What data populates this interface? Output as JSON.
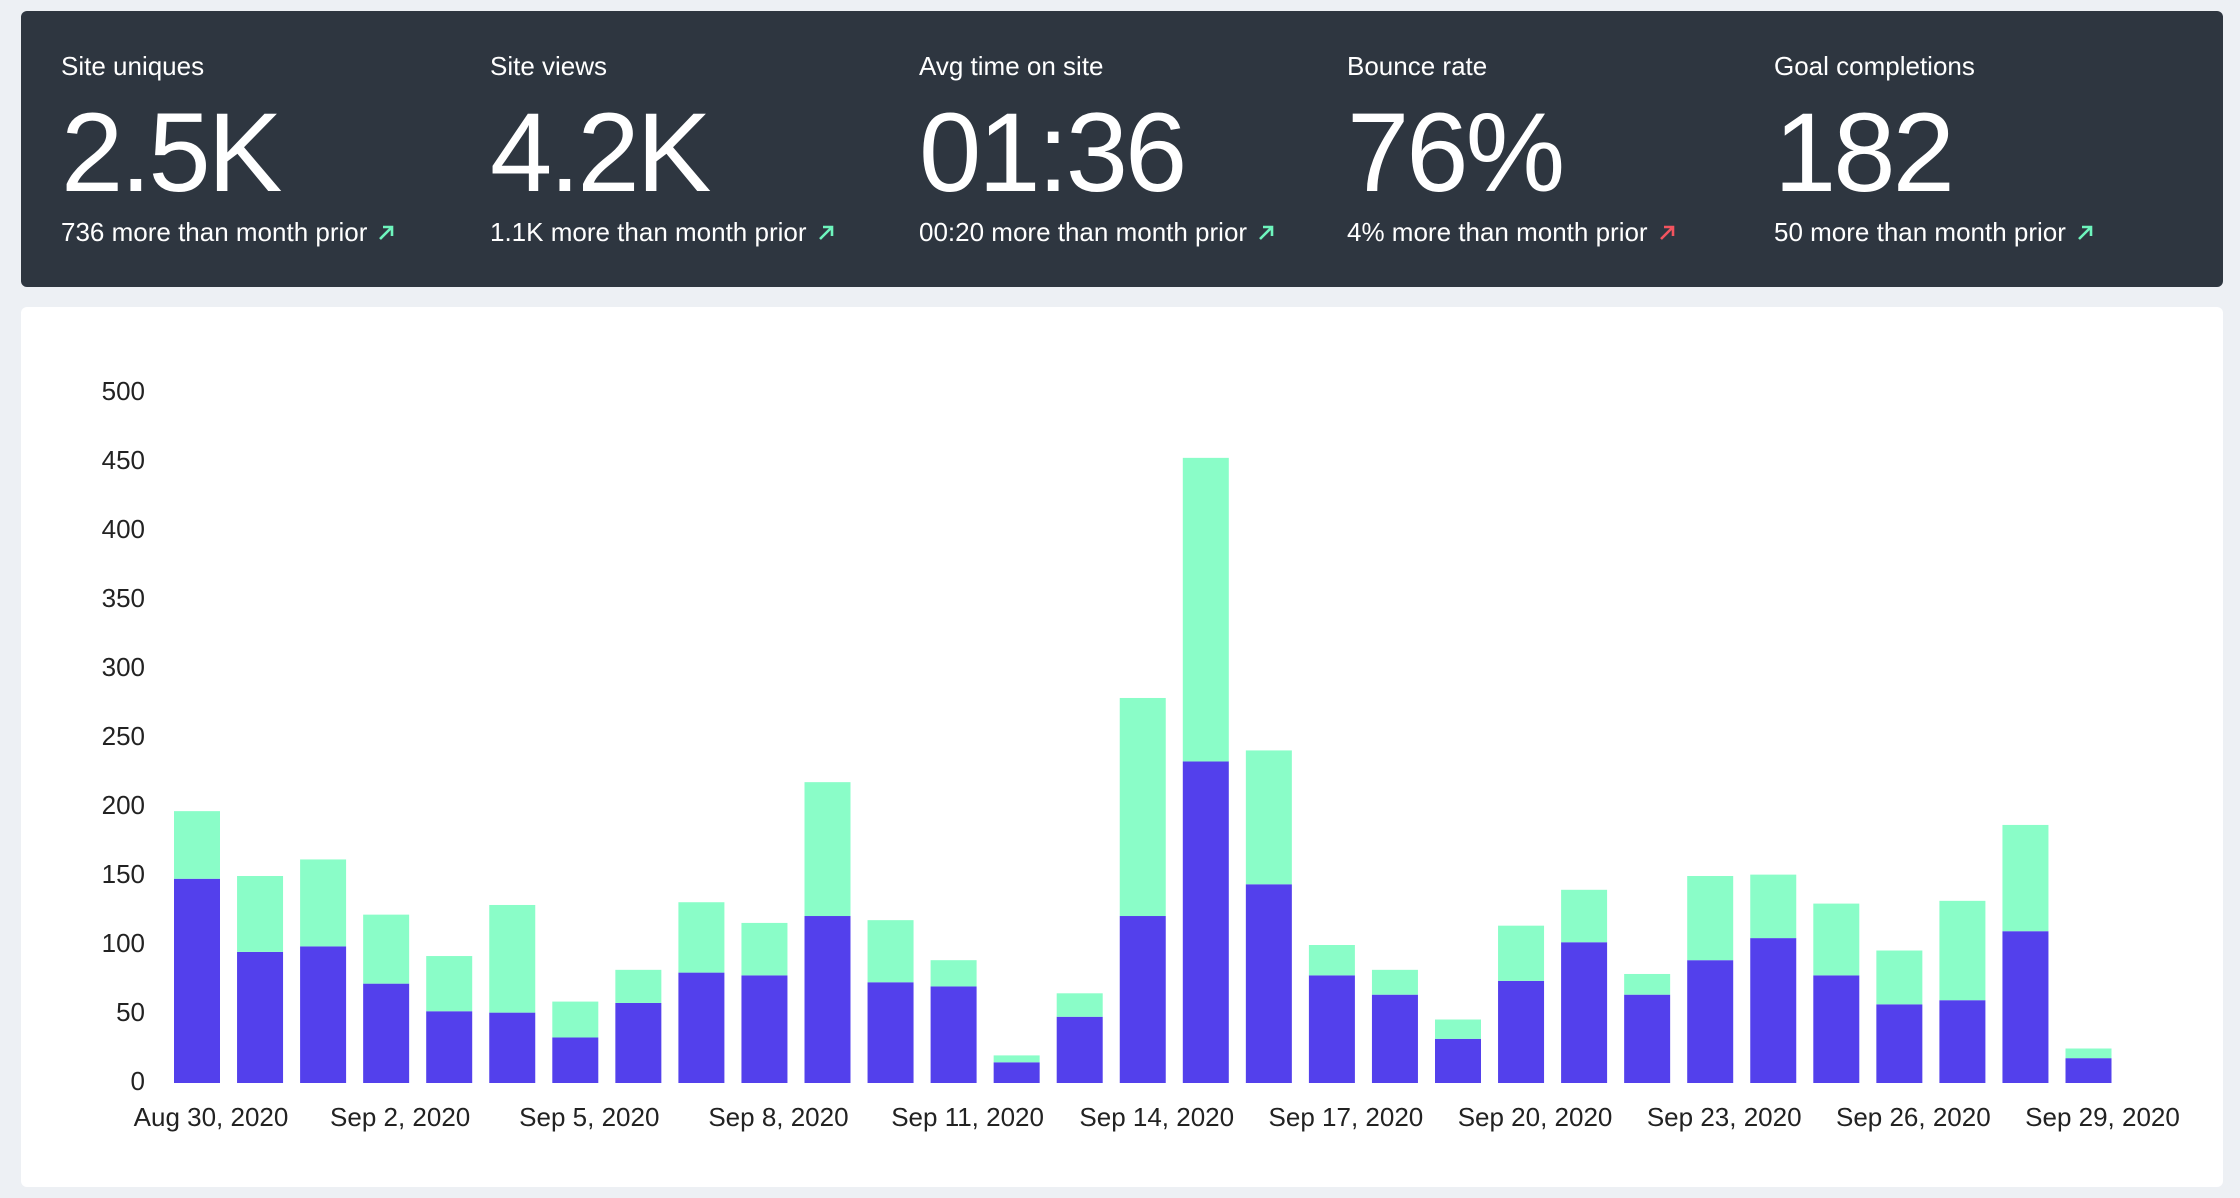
{
  "stats": [
    {
      "label": "Site uniques",
      "value": "2.5K",
      "change": "736 more than month prior",
      "arrow_color": "#6ef5bd"
    },
    {
      "label": "Site views",
      "value": "4.2K",
      "change": "1.1K more than month prior",
      "arrow_color": "#6ef5bd"
    },
    {
      "label": "Avg time on site",
      "value": "01:36",
      "change": "00:20 more than month prior",
      "arrow_color": "#6ef5bd"
    },
    {
      "label": "Bounce rate",
      "value": "76%",
      "change": "4% more than month prior",
      "arrow_color": "#f2545f"
    },
    {
      "label": "Goal completions",
      "value": "182",
      "change": "50 more than month prior",
      "arrow_color": "#6ef5bd"
    }
  ],
  "chart_data": {
    "type": "stacked_bar",
    "categories": [
      "Aug 30, 2020",
      null,
      null,
      "Sep 2, 2020",
      null,
      null,
      "Sep 5, 2020",
      null,
      null,
      "Sep 8, 2020",
      null,
      null,
      "Sep 11, 2020",
      null,
      null,
      "Sep 14, 2020",
      null,
      null,
      "Sep 17, 2020",
      null,
      null,
      "Sep 20, 2020",
      null,
      null,
      "Sep 23, 2020",
      null,
      null,
      "Sep 26, 2020",
      null,
      null,
      "Sep 29, 2020"
    ],
    "series": [
      {
        "color": "#5340ec",
        "values": [
          148,
          95,
          99,
          72,
          52,
          51,
          33,
          58,
          80,
          78,
          121,
          73,
          70,
          15,
          48,
          121,
          233,
          144,
          78,
          64,
          32,
          74,
          102,
          64,
          89,
          105,
          78,
          57,
          60,
          110,
          18
        ]
      },
      {
        "color": "#8afdc8",
        "values": [
          49,
          55,
          63,
          50,
          40,
          78,
          26,
          24,
          51,
          38,
          97,
          45,
          19,
          5,
          17,
          158,
          220,
          97,
          22,
          18,
          14,
          40,
          38,
          15,
          61,
          46,
          52,
          39,
          72,
          77,
          7
        ]
      }
    ],
    "ylim": [
      0,
      500
    ],
    "yticks": [
      0,
      50,
      100,
      150,
      200,
      250,
      300,
      350,
      400,
      450,
      500
    ]
  }
}
